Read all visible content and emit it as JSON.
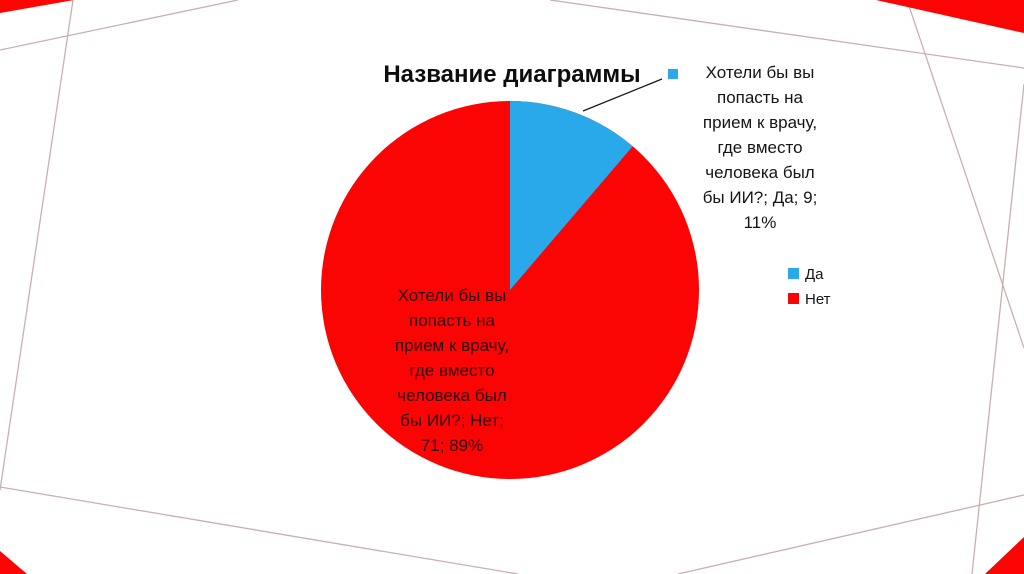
{
  "slide": {
    "background_color": "#ffffff",
    "decor_line_color": "#c9b0b0",
    "accent_color": "#fb0404"
  },
  "chart_data": {
    "type": "pie",
    "title": "Название диаграммы",
    "question": "Хотели бы вы попасть на прием к врачу, где вместо человека был бы ИИ?",
    "categories": [
      "Да",
      "Нет"
    ],
    "values": [
      9,
      71
    ],
    "percents": [
      "11%",
      "89%"
    ],
    "start_angle_deg": 0,
    "direction": "clockwise",
    "legend_position": "right",
    "colors": {
      "yes": "#29a9e9",
      "no": "#fb0404"
    },
    "slice_labels": {
      "yes": "Хотели бы вы\nпопасть на\nприем к врачу,\nгде вместо\nчеловека был\nбы ИИ?; Да; 9;\n11%",
      "no": "Хотели бы вы\nпопасть на\nприем к врачу,\nгде вместо\nчеловека был\nбы ИИ?; Нет;\n71; 89%"
    },
    "legend": {
      "items": [
        {
          "label": "Да",
          "color": "#29a9e9"
        },
        {
          "label": "Нет",
          "color": "#fb0404"
        }
      ]
    }
  }
}
